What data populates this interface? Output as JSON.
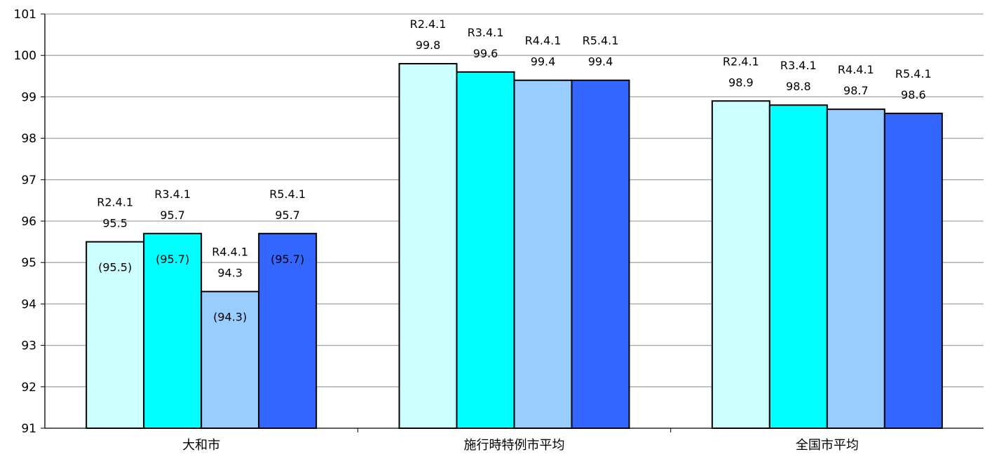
{
  "chart_data": {
    "type": "bar",
    "title": "",
    "xlabel": "",
    "ylabel": "",
    "ylim": [
      91,
      101
    ],
    "yticks": [
      91,
      92,
      93,
      94,
      95,
      96,
      97,
      98,
      99,
      100,
      101
    ],
    "grid": true,
    "legend": "none",
    "categories": [
      "大和市",
      "施行時特例市平均",
      "全国市平均"
    ],
    "series": [
      {
        "period": "R2.4.1",
        "color": "#ccffff",
        "values": [
          95.5,
          99.8,
          98.9
        ]
      },
      {
        "period": "R3.4.1",
        "color": "#00ffff",
        "values": [
          95.7,
          99.6,
          98.8
        ]
      },
      {
        "period": "R4.4.1",
        "color": "#99ccff",
        "values": [
          94.3,
          99.4,
          98.7
        ]
      },
      {
        "period": "R5.4.1",
        "color": "#3366ff",
        "values": [
          95.7,
          99.4,
          98.6
        ]
      }
    ],
    "value_labels": [
      [
        "95.5",
        "99.8",
        "98.9"
      ],
      [
        "95.7",
        "99.6",
        "98.8"
      ],
      [
        "94.3",
        "99.4",
        "98.7"
      ],
      [
        "95.7",
        "99.4",
        "98.6"
      ]
    ],
    "inner_labels": [
      [
        "(95.5)",
        null,
        null
      ],
      [
        "(95.7)",
        null,
        null
      ],
      [
        "(94.3)",
        null,
        null
      ],
      [
        "(95.7)",
        null,
        null
      ]
    ]
  }
}
